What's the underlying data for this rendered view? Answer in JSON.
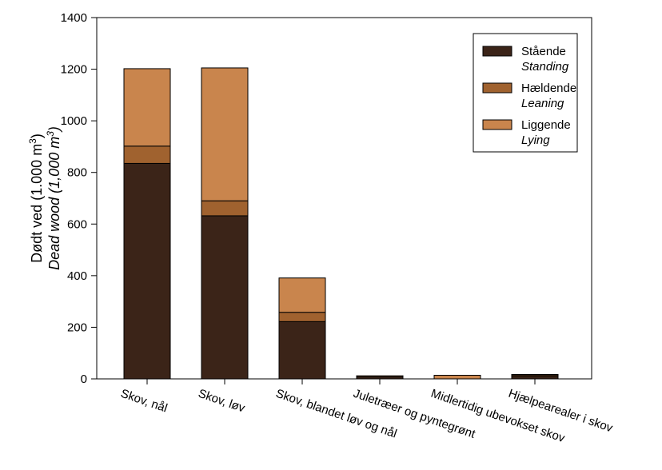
{
  "chart_data": {
    "type": "bar",
    "stacked": true,
    "categories": [
      "Skov, nål",
      "Skov, løv",
      "Skov, blandet løv og nål",
      "Juletræer og pyntegrønt",
      "Midlertidig ubevokset skov",
      "Hjælpearealer i skov"
    ],
    "series": [
      {
        "name": "Stående",
        "name_en": "Standing",
        "color": "#3b2418",
        "values": [
          835,
          632,
          222,
          8,
          0,
          10
        ]
      },
      {
        "name": "Hældende",
        "name_en": "Leaning",
        "color": "#a0622f",
        "values": [
          67,
          58,
          36,
          0,
          0,
          5
        ]
      },
      {
        "name": "Liggende",
        "name_en": "Lying",
        "color": "#c9854d",
        "values": [
          300,
          515,
          133,
          4,
          14,
          2
        ]
      }
    ],
    "ylabel_da": "Dødt ved (1.000 m",
    "ylabel_en": "Dead wood (1,000 m",
    "ylabel_sup": "3",
    "ylabel_da_close": ")",
    "ylabel_en_close": ")",
    "ylim": [
      0,
      1400
    ],
    "yticks": [
      0,
      200,
      400,
      600,
      800,
      1000,
      1200,
      1400
    ],
    "grid": false,
    "legend_position": "top-right"
  }
}
